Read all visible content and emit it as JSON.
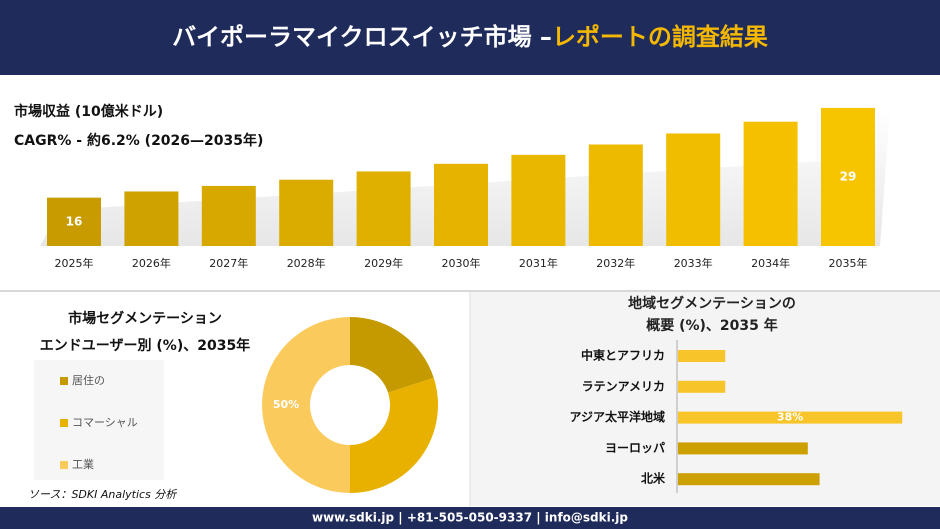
{
  "header": {
    "title_main": "バイポーラマイクロスイッチ市場 –",
    "title_highlight": "レポートの調査結果"
  },
  "source": "ソース：SDKI Analytics 分析",
  "footer": {
    "contact": "www.sdki.jp | +81-505-050-9337 | info@sdki.jp"
  },
  "chart_data": [
    {
      "type": "bar",
      "title": "市場収益 (10億米ドル)",
      "subtitle": "CAGR% - 約6.2% (2026—2035年)",
      "categories": [
        "2025年",
        "2026年",
        "2027年",
        "2028年",
        "2029年",
        "2030年",
        "2031年",
        "2032年",
        "2033年",
        "2034年",
        "2035年"
      ],
      "values": [
        16,
        16.9,
        17.7,
        18.6,
        19.8,
        20.9,
        22.2,
        23.7,
        25.3,
        27,
        29
      ],
      "value_labels": [
        "16",
        null,
        null,
        null,
        null,
        null,
        null,
        null,
        null,
        null,
        "29"
      ],
      "colors": [
        "#c89c00",
        "#cfa200",
        "#d6a800",
        "#dbac00",
        "#e0b000",
        "#e5b300",
        "#eab700",
        "#eeba00",
        "#f1bd00",
        "#f4c000",
        "#f7c400"
      ],
      "ylim": [
        9,
        30
      ]
    },
    {
      "type": "donut",
      "title": "市場セグメンテーション",
      "subtitle": "エンドユーザー別 (%)、2035年",
      "categories": [
        "居住の",
        "コマーシャル",
        "工業"
      ],
      "values": [
        20,
        30,
        50
      ],
      "value_labels": [
        null,
        null,
        "50%"
      ],
      "colors": [
        "#c49a00",
        "#e8b100",
        "#fbca5c"
      ]
    },
    {
      "type": "barh",
      "title": "地域セグメンテーションの",
      "subtitle": "概要 (%)、2035 年",
      "categories": [
        "中東とアフリカ",
        "ラテンアメリカ",
        "アジア太平洋地域",
        "ヨーロッパ",
        "北米"
      ],
      "values": [
        8,
        8,
        38,
        22,
        24
      ],
      "value_labels": [
        null,
        null,
        "38%",
        null,
        null
      ],
      "colors": [
        "#f7c52a",
        "#f7c52a",
        "#f7c52a",
        "#cba000",
        "#cba000"
      ],
      "xlim": [
        0,
        40
      ]
    }
  ]
}
